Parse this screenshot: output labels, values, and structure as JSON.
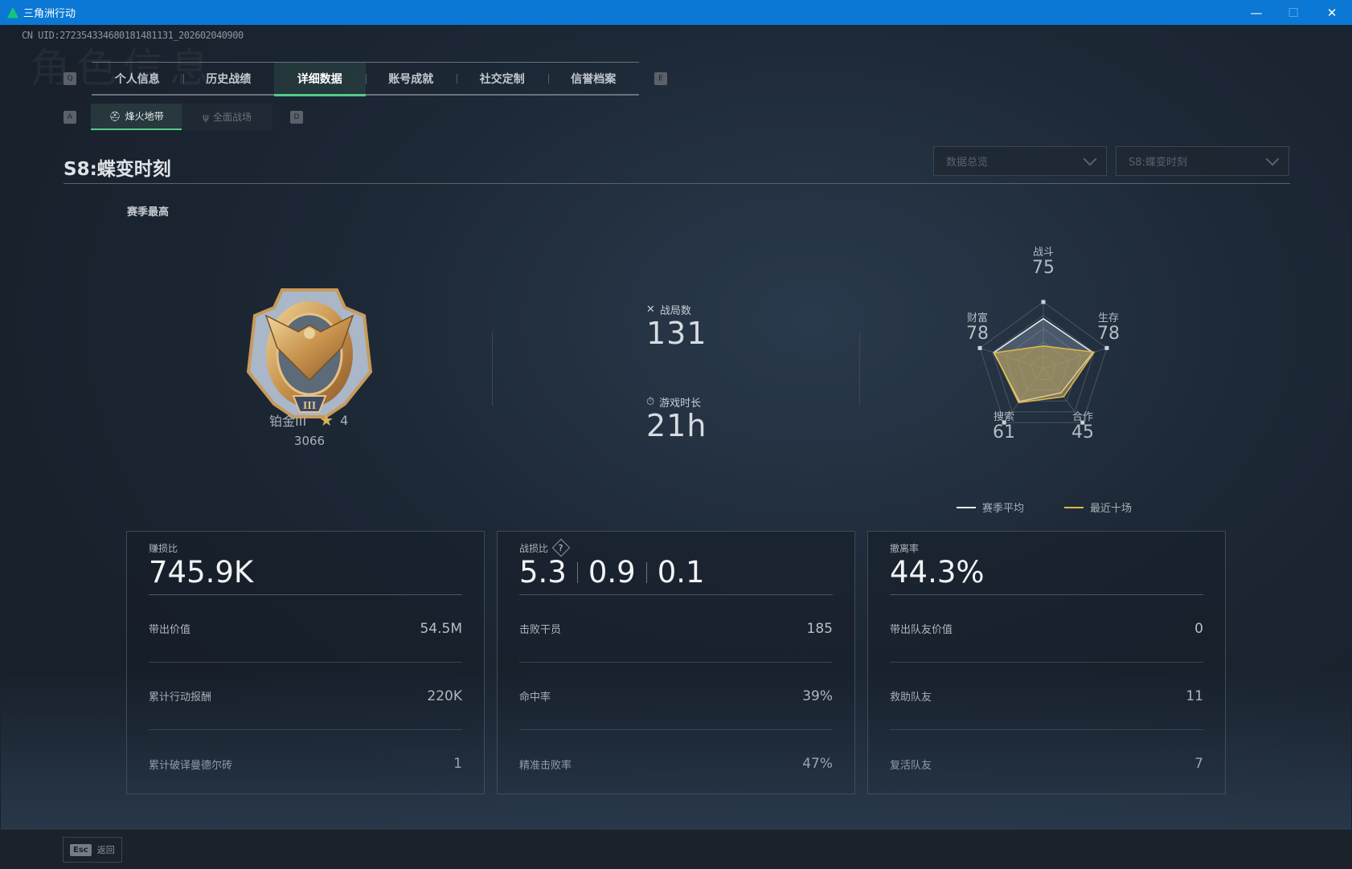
{
  "window": {
    "title": "三角洲行动",
    "minimize": "—",
    "maximize": "☐",
    "close": "✕"
  },
  "uid": "CN UID:272354334680181481131_202602040900",
  "watermark": "角色信息",
  "tabs": {
    "prev_key": "Q",
    "next_key": "E",
    "items": [
      {
        "label": "个人信息",
        "active": false
      },
      {
        "label": "历史战绩",
        "active": false
      },
      {
        "label": "详细数据",
        "active": true
      },
      {
        "label": "账号成就",
        "active": false
      },
      {
        "label": "社交定制",
        "active": false
      },
      {
        "label": "信誉档案",
        "active": false
      }
    ]
  },
  "subtabs": {
    "prev_key": "A",
    "next_key": "D",
    "items": [
      {
        "label": "烽火地带",
        "icon": "helmet-icon",
        "active": true
      },
      {
        "label": "全面战场",
        "icon": "soldier-icon",
        "active": false
      }
    ]
  },
  "season_title": "S8:蝶变时刻",
  "dropdowns": {
    "view": "数据总览",
    "season": "S8:蝶变时刻"
  },
  "season_best": {
    "label": "赛季最高",
    "rank": "铂金III",
    "stars": "4",
    "score": "3066"
  },
  "stats": {
    "matches_label": "战局数",
    "matches": "131",
    "playtime_label": "游戏时长",
    "playtime": "21h"
  },
  "chart_data": {
    "type": "radar",
    "axes": [
      "战斗",
      "生存",
      "合作",
      "搜索",
      "财富"
    ],
    "range": [
      0,
      100
    ],
    "displayed_values": [
      "75",
      "78",
      "45",
      "61",
      "78"
    ],
    "series": [
      {
        "name": "赛季平均",
        "color": "#e8ecef",
        "values": [
          75,
          78,
          45,
          61,
          78
        ]
      },
      {
        "name": "最近十场",
        "color": "#d9b84a",
        "values": [
          34,
          80,
          52,
          63,
          77
        ]
      }
    ],
    "legend": "bottom"
  },
  "cards": [
    {
      "label": "赚损比",
      "values": [
        "745.9K"
      ],
      "help": false,
      "rows": [
        {
          "label": "带出价值",
          "value": "54.5M"
        },
        {
          "label": "累计行动报酬",
          "value": "220K"
        },
        {
          "label": "累计破译曼德尔砖",
          "value": "1"
        }
      ]
    },
    {
      "label": "战损比",
      "values": [
        "5.3",
        "0.9",
        "0.1"
      ],
      "help": true,
      "help_glyph": "?",
      "rows": [
        {
          "label": "击败干员",
          "value": "185"
        },
        {
          "label": "命中率",
          "value": "39%"
        },
        {
          "label": "精准击败率",
          "value": "47%"
        }
      ]
    },
    {
      "label": "撤离率",
      "values": [
        "44.3%"
      ],
      "help": false,
      "rows": [
        {
          "label": "带出队友价值",
          "value": "0"
        },
        {
          "label": "救助队友",
          "value": "11"
        },
        {
          "label": "复活队友",
          "value": "7"
        }
      ]
    }
  ],
  "footer": {
    "esc_key": "Esc",
    "back_label": "返回"
  }
}
